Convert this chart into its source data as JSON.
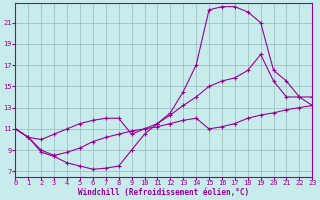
{
  "xlabel": "Windchill (Refroidissement éolien,°C)",
  "bg_color": "#c8ecec",
  "line_color": "#990099",
  "grid_color": "#99bbbb",
  "xlim": [
    0,
    23
  ],
  "ylim": [
    6.5,
    22.8
  ],
  "xticks": [
    0,
    1,
    2,
    3,
    4,
    5,
    6,
    7,
    8,
    9,
    10,
    11,
    12,
    13,
    14,
    15,
    16,
    17,
    18,
    19,
    20,
    21,
    22,
    23
  ],
  "yticks": [
    7,
    9,
    11,
    13,
    15,
    17,
    19,
    21
  ],
  "curve1_x": [
    0,
    1,
    2,
    3,
    4,
    5,
    6,
    7,
    8,
    9,
    10,
    11,
    12,
    13,
    14,
    15,
    16,
    17,
    18,
    19,
    20,
    21,
    22,
    23
  ],
  "curve1_y": [
    11.0,
    10.2,
    8.8,
    8.4,
    7.8,
    7.5,
    7.2,
    7.3,
    7.5,
    9.0,
    10.5,
    11.5,
    12.5,
    14.5,
    17.0,
    22.2,
    22.5,
    22.5,
    22.0,
    21.0,
    16.5,
    15.5,
    14.0,
    14.0
  ],
  "curve2_x": [
    0,
    1,
    2,
    3,
    4,
    5,
    6,
    7,
    8,
    9,
    10,
    11,
    12,
    13,
    14,
    15,
    16,
    17,
    18,
    19,
    20,
    21,
    22,
    23
  ],
  "curve2_y": [
    11.0,
    10.2,
    10.0,
    10.5,
    11.0,
    11.5,
    11.8,
    12.0,
    12.0,
    10.5,
    11.0,
    11.5,
    12.3,
    13.2,
    14.0,
    15.0,
    15.5,
    15.8,
    16.5,
    18.0,
    15.5,
    14.0,
    14.0,
    13.2
  ],
  "curve3_x": [
    0,
    1,
    2,
    3,
    4,
    5,
    6,
    7,
    8,
    9,
    10,
    11,
    12,
    13,
    14,
    15,
    16,
    17,
    18,
    19,
    20,
    21,
    22,
    23
  ],
  "curve3_y": [
    11.0,
    10.2,
    9.0,
    8.5,
    8.8,
    9.2,
    9.8,
    10.2,
    10.5,
    10.8,
    11.0,
    11.2,
    11.5,
    11.8,
    12.0,
    11.0,
    11.2,
    11.5,
    12.0,
    12.3,
    12.5,
    12.8,
    13.0,
    13.2
  ]
}
